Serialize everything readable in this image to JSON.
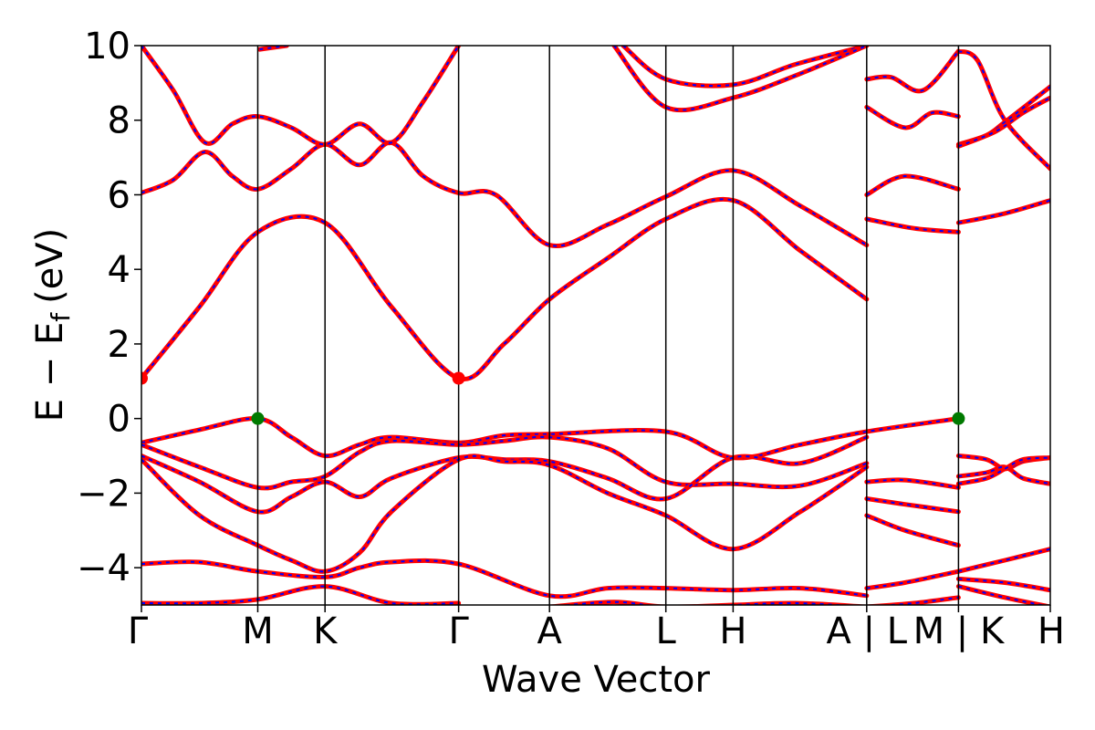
{
  "chart_data": {
    "type": "line",
    "title": "",
    "xlabel": "Wave Vector",
    "ylabel": "E − E_f (eV)",
    "ylabel_main": "E − E",
    "ylabel_sub": "f",
    "ylabel_unit": "(eV)",
    "ylim": [
      -5,
      10
    ],
    "xlim": [
      0,
      1
    ],
    "grid": false,
    "y_ticks": [
      -4,
      -2,
      0,
      2,
      4,
      6,
      8,
      10
    ],
    "y_tick_labels": [
      "−4",
      "−2",
      "0",
      "2",
      "4",
      "6",
      "8",
      "10"
    ],
    "kpoints": [
      {
        "label": "Γ",
        "x": 0.0
      },
      {
        "label": "M",
        "x": 0.128
      },
      {
        "label": "K",
        "x": 0.202
      },
      {
        "label": "Γ",
        "x": 0.349
      },
      {
        "label": "A",
        "x": 0.449
      },
      {
        "label": "L",
        "x": 0.577
      },
      {
        "label": "H",
        "x": 0.651
      },
      {
        "label": "A | L",
        "x": 0.798
      },
      {
        "label": "M | K",
        "x": 0.899
      },
      {
        "label": "H",
        "x": 1.0
      }
    ],
    "segment_breaks": [
      0.798,
      0.899
    ],
    "series_colors": {
      "solid": "#ff0000",
      "dashed": "#0000ff"
    },
    "markers": [
      {
        "name": "cbm",
        "x": 0.0,
        "y": 1.08,
        "color": "#ff0000"
      },
      {
        "name": "cbm",
        "x": 0.349,
        "y": 1.08,
        "color": "#ff0000"
      },
      {
        "name": "vbm",
        "x": 0.128,
        "y": 0.0,
        "color": "#007a00"
      },
      {
        "name": "vbm",
        "x": 0.899,
        "y": 0.0,
        "color": "#007a00"
      }
    ],
    "bands": [
      {
        "name": "c1",
        "points": [
          [
            0,
            1.08
          ],
          [
            0.064,
            3.0
          ],
          [
            0.128,
            5.0
          ],
          [
            0.202,
            5.25
          ],
          [
            0.275,
            3.0
          ],
          [
            0.349,
            1.08
          ],
          [
            0.399,
            2.0
          ],
          [
            0.449,
            3.2
          ],
          [
            0.513,
            4.3
          ],
          [
            0.577,
            5.35
          ],
          [
            0.651,
            5.85
          ],
          [
            0.725,
            4.5
          ],
          [
            0.798,
            3.2
          ]
        ]
      },
      {
        "name": "c2",
        "points": [
          [
            0,
            6.05
          ],
          [
            0.035,
            6.4
          ],
          [
            0.07,
            7.15
          ],
          [
            0.1,
            6.5
          ],
          [
            0.128,
            6.15
          ],
          [
            0.165,
            6.7
          ],
          [
            0.202,
            7.35
          ],
          [
            0.24,
            6.8
          ],
          [
            0.275,
            7.4
          ],
          [
            0.31,
            6.5
          ],
          [
            0.349,
            6.05
          ],
          [
            0.39,
            6.0
          ],
          [
            0.449,
            4.65
          ],
          [
            0.513,
            5.2
          ],
          [
            0.577,
            5.95
          ],
          [
            0.651,
            6.65
          ],
          [
            0.725,
            5.7
          ],
          [
            0.798,
            4.65
          ]
        ]
      },
      {
        "name": "c3",
        "points": [
          [
            0,
            10.0
          ],
          [
            0.035,
            8.8
          ],
          [
            0.07,
            7.4
          ],
          [
            0.1,
            7.9
          ],
          [
            0.128,
            8.1
          ],
          [
            0.165,
            7.8
          ],
          [
            0.202,
            7.35
          ],
          [
            0.24,
            7.9
          ],
          [
            0.275,
            7.4
          ],
          [
            0.31,
            8.5
          ],
          [
            0.349,
            10.0
          ]
        ]
      },
      {
        "name": "c4",
        "points": [
          [
            0.13,
            9.9
          ],
          [
            0.16,
            10.0
          ]
        ]
      },
      {
        "name": "c5",
        "points": [
          [
            0.53,
            10.0
          ],
          [
            0.577,
            9.1
          ],
          [
            0.651,
            8.95
          ],
          [
            0.72,
            9.5
          ],
          [
            0.798,
            10.0
          ]
        ]
      },
      {
        "name": "c6",
        "points": [
          [
            0.52,
            10.0
          ],
          [
            0.577,
            8.35
          ],
          [
            0.651,
            8.6
          ],
          [
            0.72,
            9.2
          ],
          [
            0.798,
            10.0
          ]
        ]
      },
      {
        "name": "c7",
        "points": [
          [
            0.798,
            9.1
          ],
          [
            0.825,
            9.15
          ],
          [
            0.86,
            8.8
          ],
          [
            0.899,
            9.85
          ]
        ]
      },
      {
        "name": "c8",
        "points": [
          [
            0.798,
            8.35
          ],
          [
            0.84,
            7.8
          ],
          [
            0.87,
            8.2
          ],
          [
            0.899,
            8.1
          ]
        ]
      },
      {
        "name": "c9",
        "points": [
          [
            0.798,
            6.0
          ],
          [
            0.84,
            6.5
          ],
          [
            0.899,
            6.15
          ]
        ]
      },
      {
        "name": "c10",
        "points": [
          [
            0.798,
            5.35
          ],
          [
            0.85,
            5.1
          ],
          [
            0.899,
            5.0
          ]
        ]
      },
      {
        "name": "c11",
        "points": [
          [
            0.899,
            9.85
          ],
          [
            0.92,
            9.6
          ],
          [
            0.95,
            8.0
          ],
          [
            1.0,
            6.7
          ]
        ]
      },
      {
        "name": "c12",
        "points": [
          [
            0.899,
            7.35
          ],
          [
            0.93,
            7.6
          ],
          [
            0.95,
            7.95
          ],
          [
            1.0,
            8.9
          ]
        ]
      },
      {
        "name": "c13",
        "points": [
          [
            0.899,
            7.3
          ],
          [
            0.94,
            7.7
          ],
          [
            0.97,
            8.2
          ],
          [
            1.0,
            8.6
          ]
        ]
      },
      {
        "name": "c14",
        "points": [
          [
            0.899,
            5.25
          ],
          [
            0.95,
            5.5
          ],
          [
            1.0,
            5.85
          ]
        ]
      },
      {
        "name": "v1",
        "points": [
          [
            0,
            -0.65
          ],
          [
            0.064,
            -0.3
          ],
          [
            0.128,
            0.0
          ],
          [
            0.165,
            -0.5
          ],
          [
            0.202,
            -1.0
          ],
          [
            0.24,
            -0.7
          ],
          [
            0.275,
            -0.5
          ],
          [
            0.349,
            -0.65
          ],
          [
            0.399,
            -0.45
          ],
          [
            0.449,
            -0.42
          ],
          [
            0.577,
            -0.35
          ],
          [
            0.651,
            -1.05
          ],
          [
            0.725,
            -0.7
          ],
          [
            0.798,
            -0.35
          ],
          [
            0.899,
            0.0
          ]
        ]
      },
      {
        "name": "v2",
        "points": [
          [
            0,
            -0.7
          ],
          [
            0.064,
            -1.3
          ],
          [
            0.128,
            -1.85
          ],
          [
            0.165,
            -1.7
          ],
          [
            0.202,
            -1.55
          ],
          [
            0.24,
            -0.9
          ],
          [
            0.275,
            -0.6
          ],
          [
            0.349,
            -0.7
          ],
          [
            0.399,
            -0.6
          ],
          [
            0.449,
            -0.5
          ],
          [
            0.513,
            -0.8
          ],
          [
            0.577,
            -1.7
          ],
          [
            0.651,
            -1.75
          ],
          [
            0.725,
            -1.8
          ],
          [
            0.798,
            -1.2
          ]
        ]
      },
      {
        "name": "v3",
        "points": [
          [
            0,
            -1.0
          ],
          [
            0.064,
            -1.7
          ],
          [
            0.128,
            -2.5
          ],
          [
            0.165,
            -2.1
          ],
          [
            0.202,
            -1.7
          ],
          [
            0.24,
            -2.1
          ],
          [
            0.275,
            -1.6
          ],
          [
            0.349,
            -1.05
          ],
          [
            0.399,
            -1.1
          ],
          [
            0.449,
            -1.15
          ],
          [
            0.513,
            -1.6
          ],
          [
            0.577,
            -2.15
          ],
          [
            0.651,
            -1.05
          ],
          [
            0.725,
            -1.2
          ],
          [
            0.798,
            -0.5
          ]
        ]
      },
      {
        "name": "v4",
        "points": [
          [
            0,
            -1.1
          ],
          [
            0.064,
            -2.6
          ],
          [
            0.128,
            -3.4
          ],
          [
            0.165,
            -3.8
          ],
          [
            0.202,
            -4.1
          ],
          [
            0.24,
            -3.6
          ],
          [
            0.275,
            -2.5
          ],
          [
            0.349,
            -1.1
          ],
          [
            0.399,
            -1.15
          ],
          [
            0.449,
            -1.25
          ],
          [
            0.513,
            -2.0
          ],
          [
            0.577,
            -2.6
          ],
          [
            0.651,
            -3.5
          ],
          [
            0.725,
            -2.5
          ],
          [
            0.798,
            -1.3
          ]
        ]
      },
      {
        "name": "v5",
        "points": [
          [
            0,
            -3.9
          ],
          [
            0.064,
            -3.85
          ],
          [
            0.128,
            -4.1
          ],
          [
            0.202,
            -4.25
          ],
          [
            0.24,
            -4.0
          ],
          [
            0.275,
            -3.85
          ],
          [
            0.349,
            -3.9
          ],
          [
            0.449,
            -4.75
          ],
          [
            0.513,
            -4.55
          ],
          [
            0.577,
            -4.55
          ],
          [
            0.651,
            -4.6
          ],
          [
            0.725,
            -4.55
          ],
          [
            0.798,
            -4.75
          ]
        ]
      },
      {
        "name": "v6",
        "points": [
          [
            0,
            -4.95
          ],
          [
            0.064,
            -4.95
          ],
          [
            0.128,
            -4.85
          ],
          [
            0.202,
            -4.5
          ],
          [
            0.275,
            -4.95
          ],
          [
            0.349,
            -4.95
          ]
        ]
      },
      {
        "name": "v7",
        "points": [
          [
            0.449,
            -5.05
          ],
          [
            0.52,
            -4.92
          ],
          [
            0.577,
            -5.05
          ],
          [
            0.651,
            -5.0
          ],
          [
            0.72,
            -4.95
          ],
          [
            0.798,
            -5.05
          ]
        ]
      },
      {
        "name": "v8",
        "points": [
          [
            0.798,
            -1.7
          ],
          [
            0.84,
            -1.65
          ],
          [
            0.899,
            -1.85
          ]
        ]
      },
      {
        "name": "v9",
        "points": [
          [
            0.798,
            -2.15
          ],
          [
            0.84,
            -2.3
          ],
          [
            0.899,
            -2.5
          ]
        ]
      },
      {
        "name": "v10",
        "points": [
          [
            0.798,
            -2.6
          ],
          [
            0.84,
            -3.0
          ],
          [
            0.899,
            -3.4
          ]
        ]
      },
      {
        "name": "v11",
        "points": [
          [
            0.798,
            -4.55
          ],
          [
            0.84,
            -4.4
          ],
          [
            0.899,
            -4.1
          ]
        ]
      },
      {
        "name": "v12",
        "points": [
          [
            0.798,
            -5.05
          ],
          [
            0.85,
            -4.95
          ],
          [
            0.899,
            -4.8
          ]
        ]
      },
      {
        "name": "v13",
        "points": [
          [
            0.899,
            -1.0
          ],
          [
            0.93,
            -1.1
          ],
          [
            0.95,
            -1.35
          ],
          [
            0.97,
            -1.15
          ],
          [
            1.0,
            -1.05
          ]
        ]
      },
      {
        "name": "v14",
        "points": [
          [
            0.899,
            -1.55
          ],
          [
            0.93,
            -1.45
          ],
          [
            0.95,
            -1.3
          ],
          [
            0.97,
            -1.6
          ],
          [
            1.0,
            -1.75
          ]
        ]
      },
      {
        "name": "v15",
        "points": [
          [
            0.899,
            -1.75
          ],
          [
            0.93,
            -1.6
          ],
          [
            0.95,
            -1.35
          ],
          [
            0.97,
            -1.1
          ],
          [
            1.0,
            -1.05
          ]
        ]
      },
      {
        "name": "v16",
        "points": [
          [
            0.899,
            -4.1
          ],
          [
            0.95,
            -3.8
          ],
          [
            1.0,
            -3.5
          ]
        ]
      },
      {
        "name": "v17",
        "points": [
          [
            0.899,
            -4.3
          ],
          [
            0.95,
            -4.4
          ],
          [
            1.0,
            -4.6
          ]
        ]
      },
      {
        "name": "v18",
        "points": [
          [
            0.899,
            -4.5
          ],
          [
            0.95,
            -4.8
          ],
          [
            1.0,
            -5.05
          ]
        ]
      }
    ]
  }
}
